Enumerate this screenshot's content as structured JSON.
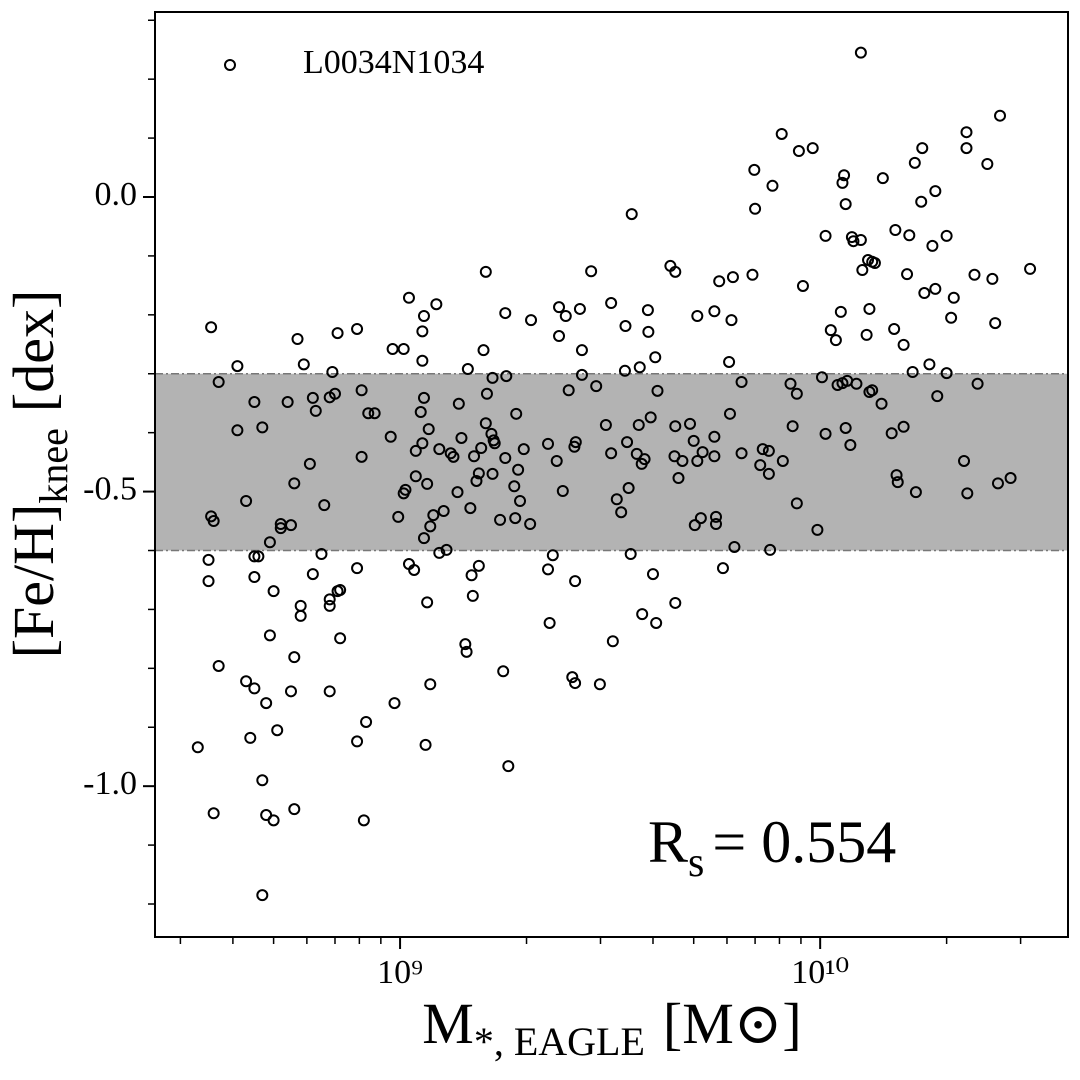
{
  "chart_data": {
    "type": "scatter",
    "xlabel": {
      "main": "M",
      "sub": "*, EAGLE",
      "unit": "[M⊙]"
    },
    "ylabel": {
      "main": "[Fe/H]",
      "sub": "knee",
      "unit": "[dex]"
    },
    "annotation": {
      "main": "R",
      "sub": "s",
      "rest": "= 0.554"
    },
    "xscale": "log",
    "xlim": [
      261000000.0,
      38900000000.0
    ],
    "ylim": [
      -1.256,
      0.314
    ],
    "xticks": [
      {
        "value": 1000000000.0,
        "label": "10⁹"
      },
      {
        "value": 10000000000.0,
        "label": "10¹⁰"
      }
    ],
    "xminorticks": [
      300000000.0,
      400000000.0,
      500000000.0,
      600000000.0,
      700000000.0,
      800000000.0,
      900000000.0,
      2000000000.0,
      3000000000.0,
      4000000000.0,
      5000000000.0,
      6000000000.0,
      7000000000.0,
      8000000000.0,
      9000000000.0,
      20000000000.0,
      30000000000.0
    ],
    "yticks": [
      {
        "value": 0,
        "label": "0.0"
      },
      {
        "value": -0.5,
        "label": "-0.5"
      },
      {
        "value": -1,
        "label": "-1.0"
      }
    ],
    "yminorticks": [
      0.3,
      0.2,
      0.1,
      -0.1,
      -0.2,
      -0.3,
      -0.4,
      -0.6,
      -0.7,
      -0.8,
      -0.9,
      -1.1,
      -1.2
    ],
    "band": {
      "range": [
        -0.6,
        -0.3
      ],
      "color": "#b3b3b3",
      "edge_color": "#777777"
    },
    "legend": "upper left",
    "series": [
      {
        "name": "L0034N1034",
        "color": "#000000",
        "x": [
          330000000.0,
          350000000.0,
          350000000.0,
          355000000.0,
          355000000.0,
          360000000.0,
          360000000.0,
          370000000.0,
          370000000.0,
          410000000.0,
          410000000.0,
          430000000.0,
          430000000.0,
          440000000.0,
          450000000.0,
          450000000.0,
          450000000.0,
          450000000.0,
          460000000.0,
          470000000.0,
          470000000.0,
          470000000.0,
          480000000.0,
          480000000.0,
          490000000.0,
          490000000.0,
          500000000.0,
          500000000.0,
          510000000.0,
          520000000.0,
          520000000.0,
          540000000.0,
          550000000.0,
          550000000.0,
          560000000.0,
          560000000.0,
          560000000.0,
          570000000.0,
          580000000.0,
          580000000.0,
          590000000.0,
          610000000.0,
          620000000.0,
          620000000.0,
          630000000.0,
          650000000.0,
          660000000.0,
          680000000.0,
          680000000.0,
          680000000.0,
          680000000.0,
          690000000.0,
          700000000.0,
          710000000.0,
          710000000.0,
          720000000.0,
          720000000.0,
          790000000.0,
          790000000.0,
          790000000.0,
          810000000.0,
          810000000.0,
          820000000.0,
          830000000.0,
          840000000.0,
          870000000.0,
          950000000.0,
          960000000.0,
          970000000.0,
          990000000.0,
          1020000000.0,
          1020000000.0,
          1030000000.0,
          1050000000.0,
          1050000000.0,
          1080000000.0,
          1090000000.0,
          1090000000.0,
          1120000000.0,
          1130000000.0,
          1130000000.0,
          1130000000.0,
          1140000000.0,
          1140000000.0,
          1140000000.0,
          1150000000.0,
          1160000000.0,
          1160000000.0,
          1170000000.0,
          1180000000.0,
          1180000000.0,
          1200000000.0,
          1220000000.0,
          1240000000.0,
          1240000000.0,
          1270000000.0,
          1290000000.0,
          1320000000.0,
          1340000000.0,
          1370000000.0,
          1380000000.0,
          1400000000.0,
          1430000000.0,
          1440000000.0,
          1450000000.0,
          1470000000.0,
          1480000000.0,
          1490000000.0,
          1500000000.0,
          1520000000.0,
          1540000000.0,
          1540000000.0,
          1560000000.0,
          1580000000.0,
          1600000000.0,
          1600000000.0,
          1610000000.0,
          1650000000.0,
          1660000000.0,
          1660000000.0,
          1670000000.0,
          1680000000.0,
          1730000000.0,
          1760000000.0,
          1780000000.0,
          1780000000.0,
          1790000000.0,
          1810000000.0,
          1870000000.0,
          1880000000.0,
          1890000000.0,
          1910000000.0,
          1930000000.0,
          1970000000.0,
          2040000000.0,
          2050000000.0,
          2250000000.0,
          2250000000.0,
          2270000000.0,
          2310000000.0,
          2360000000.0,
          2390000000.0,
          2390000000.0,
          2440000000.0,
          2480000000.0,
          2520000000.0,
          2570000000.0,
          2600000000.0,
          2610000000.0,
          2610000000.0,
          2620000000.0,
          2680000000.0,
          2710000000.0,
          2710000000.0,
          2850000000.0,
          2930000000.0,
          2990000000.0,
          3090000000.0,
          3180000000.0,
          3180000000.0,
          3210000000.0,
          3280000000.0,
          3360000000.0,
          3430000000.0,
          3440000000.0,
          3470000000.0,
          3500000000.0,
          3540000000.0,
          3560000000.0,
          3660000000.0,
          3700000000.0,
          3720000000.0,
          3760000000.0,
          3770000000.0,
          3820000000.0,
          3890000000.0,
          3900000000.0,
          3950000000.0,
          4000000000.0,
          4050000000.0,
          4070000000.0,
          4100000000.0,
          4400000000.0,
          4500000000.0,
          4520000000.0,
          4520000000.0,
          4520000000.0,
          4600000000.0,
          4700000000.0,
          4900000000.0,
          5000000000.0,
          5030000000.0,
          5100000000.0,
          5100000000.0,
          5200000000.0,
          5250000000.0,
          5600000000.0,
          5600000000.0,
          5600000000.0,
          5650000000.0,
          5650000000.0,
          5750000000.0,
          5870000000.0,
          6070000000.0,
          6100000000.0,
          6150000000.0,
          6200000000.0,
          6250000000.0,
          6500000000.0,
          6500000000.0,
          6900000000.0,
          6970000000.0,
          7000000000.0,
          7200000000.0,
          7300000000.0,
          7550000000.0,
          7550000000.0,
          7600000000.0,
          7700000000.0,
          8100000000.0,
          8150000000.0,
          8500000000.0,
          8600000000.0,
          8800000000.0,
          8800000000.0,
          8900000000.0,
          9100000000.0,
          9600000000.0,
          9850000000.0,
          10100000000.0,
          10300000000.0,
          10300000000.0,
          10600000000.0,
          10900000000.0,
          11000000000.0,
          11200000000.0,
          11300000000.0,
          11300000000.0,
          11400000000.0,
          11500000000.0,
          11500000000.0,
          11600000000.0,
          11800000000.0,
          11900000000.0,
          12000000000.0,
          12200000000.0,
          12500000000.0,
          12500000000.0,
          12600000000.0,
          12900000000.0,
          13000000000.0,
          13100000000.0,
          13100000000.0,
          13300000000.0,
          13300000000.0,
          13500000000.0,
          14000000000.0,
          14100000000.0,
          14800000000.0,
          15000000000.0,
          15100000000.0,
          15200000000.0,
          15300000000.0,
          15800000000.0,
          15800000000.0,
          16100000000.0,
          16300000000.0,
          16600000000.0,
          16800000000.0,
          16900000000.0,
          17400000000.0,
          17500000000.0,
          17700000000.0,
          18200000000.0,
          18500000000.0,
          18800000000.0,
          18800000000.0,
          19000000000.0,
          20000000000.0,
          20000000000.0,
          20500000000.0,
          20800000000.0,
          22000000000.0,
          22300000000.0,
          22300000000.0,
          22400000000.0,
          23300000000.0,
          23700000000.0,
          25000000000.0,
          25700000000.0,
          26100000000.0,
          26500000000.0,
          26800000000.0,
          28400000000.0,
          31600000000.0
        ],
        "values": [
          -0.934,
          -0.616,
          -0.652,
          -0.221,
          -0.542,
          -0.55,
          -1.046,
          -0.314,
          -0.796,
          -0.287,
          -0.396,
          -0.822,
          -0.516,
          -0.918,
          -0.61,
          -0.348,
          -0.645,
          -0.834,
          -0.61,
          -1.185,
          -0.391,
          -0.99,
          -0.859,
          -1.049,
          -0.744,
          -0.586,
          -0.669,
          -1.058,
          -0.905,
          -0.562,
          -0.555,
          -0.348,
          -0.839,
          -0.557,
          -0.486,
          -1.039,
          -0.781,
          -0.241,
          -0.694,
          -0.711,
          -0.284,
          -0.453,
          -0.64,
          -0.341,
          -0.363,
          -0.606,
          -0.523,
          -0.683,
          -0.839,
          -0.34,
          -0.694,
          -0.297,
          -0.334,
          -0.669,
          -0.231,
          -0.667,
          -0.749,
          -0.224,
          -0.63,
          -0.924,
          -0.328,
          -0.441,
          -1.058,
          -0.891,
          -0.367,
          -0.367,
          -0.407,
          -0.258,
          -0.859,
          -0.543,
          -0.258,
          -0.503,
          -0.497,
          -0.171,
          -0.623,
          -0.633,
          -0.474,
          -0.431,
          -0.365,
          -0.418,
          -0.278,
          -0.228,
          -0.202,
          -0.579,
          -0.341,
          -0.93,
          -0.688,
          -0.487,
          -0.394,
          -0.827,
          -0.559,
          -0.54,
          -0.182,
          -0.428,
          -0.604,
          -0.533,
          -0.599,
          -0.435,
          -0.441,
          -0.501,
          -0.351,
          -0.409,
          -0.759,
          -0.772,
          -0.292,
          -0.528,
          -0.642,
          -0.677,
          -0.44,
          -0.482,
          -0.626,
          -0.469,
          -0.426,
          -0.26,
          -0.127,
          -0.384,
          -0.334,
          -0.402,
          -0.307,
          -0.47,
          -0.413,
          -0.418,
          -0.548,
          -0.805,
          -0.443,
          -0.197,
          -0.304,
          -0.966,
          -0.491,
          -0.545,
          -0.368,
          -0.463,
          -0.516,
          -0.428,
          -0.555,
          -0.209,
          -0.419,
          -0.632,
          -0.723,
          -0.608,
          -0.448,
          -0.187,
          -0.236,
          -0.499,
          -0.202,
          -0.328,
          -0.815,
          -0.424,
          -0.825,
          -0.652,
          -0.416,
          -0.19,
          -0.26,
          -0.302,
          -0.126,
          -0.321,
          -0.827,
          -0.387,
          -0.435,
          -0.18,
          -0.754,
          -0.513,
          -0.535,
          -0.295,
          -0.219,
          -0.416,
          -0.494,
          -0.606,
          -0.029,
          -0.436,
          -0.387,
          -0.289,
          -0.453,
          -0.708,
          -0.445,
          -0.192,
          -0.229,
          -0.374,
          -0.64,
          -0.272,
          -0.723,
          -0.329,
          -0.117,
          -0.44,
          -0.689,
          -0.127,
          -0.389,
          -0.477,
          -0.448,
          -0.385,
          -0.414,
          -0.557,
          -0.202,
          -0.448,
          -0.545,
          -0.433,
          -0.194,
          -0.44,
          -0.407,
          -0.543,
          -0.555,
          -0.143,
          -0.63,
          -0.28,
          -0.368,
          -0.209,
          -0.136,
          -0.594,
          -0.435,
          -0.314,
          -0.132,
          0.046,
          -0.02,
          -0.455,
          -0.428,
          -0.47,
          -0.431,
          -0.599,
          0.019,
          0.107,
          -0.448,
          -0.317,
          -0.389,
          -0.52,
          -0.334,
          0.078,
          -0.151,
          0.083,
          -0.565,
          -0.306,
          -0.402,
          -0.066,
          -0.226,
          -0.243,
          -0.319,
          -0.195,
          -0.316,
          0.024,
          0.037,
          -0.012,
          -0.392,
          -0.312,
          -0.421,
          -0.068,
          -0.075,
          -0.317,
          0.245,
          -0.073,
          -0.124,
          -0.234,
          -0.107,
          -0.19,
          -0.331,
          -0.11,
          -0.328,
          -0.112,
          -0.351,
          0.032,
          -0.401,
          -0.224,
          -0.056,
          -0.472,
          -0.484,
          -0.251,
          -0.39,
          -0.131,
          -0.065,
          -0.297,
          0.058,
          -0.501,
          -0.008,
          0.083,
          -0.163,
          -0.284,
          -0.083,
          -0.156,
          0.01,
          -0.338,
          -0.066,
          -0.299,
          -0.205,
          -0.171,
          -0.448,
          0.11,
          0.083,
          -0.503,
          -0.132,
          -0.317,
          0.056,
          -0.139,
          -0.214,
          -0.486,
          0.138,
          -0.477,
          -0.122
        ]
      }
    ]
  }
}
